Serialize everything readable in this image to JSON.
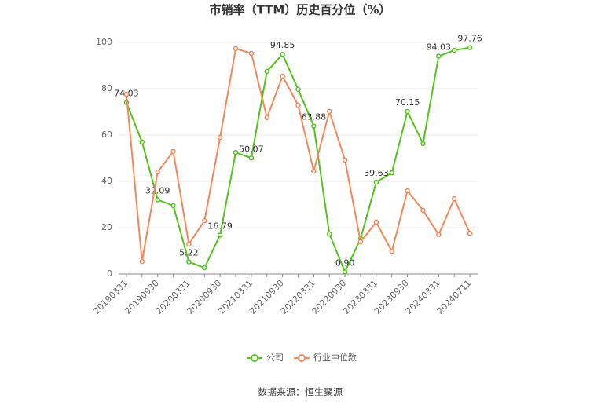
{
  "chart_data": {
    "type": "line",
    "title": "市销率（TTM）历史百分位（%）",
    "source": "数据来源：恒生聚源",
    "categories": [
      "20190331",
      null,
      "20190930",
      null,
      "20200331",
      null,
      "20200930",
      null,
      "20210331",
      null,
      "20210930",
      null,
      "20220331",
      null,
      "20220930",
      null,
      "20230331",
      null,
      "20230930",
      null,
      "20240331",
      null,
      "20240711"
    ],
    "series": [
      {
        "name": "公司",
        "color": "#52c41a",
        "values": [
          74.03,
          57,
          32.09,
          29.5,
          5.22,
          2.7,
          16.79,
          52.5,
          50.07,
          87.5,
          94.85,
          79.7,
          63.88,
          17.3,
          0.9,
          15.3,
          39.63,
          43.7,
          70.15,
          56.3,
          94.03,
          96.6,
          97.76
        ],
        "value_labels": [
          "74.03",
          null,
          "32.09",
          null,
          "5.22",
          null,
          "16.79",
          null,
          "50.07",
          null,
          "94.85",
          null,
          "63.88",
          null,
          "0.90",
          null,
          "39.63",
          null,
          "70.15",
          null,
          "94.03",
          null,
          "97.76"
        ]
      },
      {
        "name": "行业中位数",
        "color": "#f5875a",
        "values": [
          77.6,
          5.4,
          44,
          52.9,
          12.9,
          23,
          59,
          97.3,
          95.3,
          67.5,
          85.4,
          72.9,
          44.4,
          70.2,
          49.2,
          13.9,
          22.4,
          9.8,
          35.9,
          27.5,
          17,
          32.5,
          17.6
        ]
      }
    ],
    "ylim": [
      0,
      100
    ],
    "yticks": [
      0,
      20,
      40,
      60,
      80,
      100
    ],
    "grid": true
  }
}
